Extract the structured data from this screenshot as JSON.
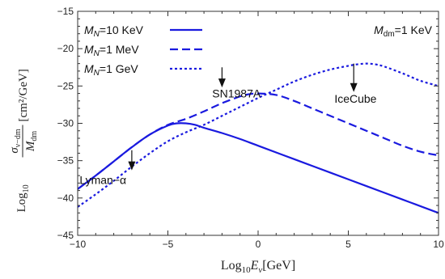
{
  "chart_data": {
    "type": "line",
    "title": "",
    "xlabel": {
      "prefix": "Log",
      "sub": "10",
      "var": "E",
      "varsub": "ν",
      "unit": "[GeV]"
    },
    "ylabel": {
      "prefix": "Log",
      "sub": "10",
      "num": "σ",
      "numsub": "ν−dm",
      "den": "M",
      "densub": "dm",
      "unit": "[cm²/GeV]"
    },
    "xlim": [
      -10,
      10
    ],
    "ylim": [
      -45,
      -15
    ],
    "xticks": [
      -10,
      -5,
      0,
      5,
      10
    ],
    "yticks": [
      -45,
      -40,
      -35,
      -30,
      -25,
      -20,
      -15
    ],
    "grid": false,
    "legend_position": "top-left",
    "color": "#1a1adf",
    "series": [
      {
        "name": "M_N=10 KeV",
        "legend": {
          "m": "M",
          "sub": "N",
          "rest": "=10 KeV"
        },
        "dash": "solid",
        "x": [
          -10,
          -9,
          -8,
          -7,
          -6,
          -5,
          -4.5,
          -4,
          -3.5,
          -3,
          -2,
          -1,
          0,
          2,
          4,
          6,
          8,
          10
        ],
        "y": [
          -38.8,
          -37.0,
          -35.1,
          -33.2,
          -31.5,
          -30.3,
          -30.0,
          -30.0,
          -30.2,
          -30.6,
          -31.3,
          -32.1,
          -33.0,
          -34.8,
          -36.6,
          -38.4,
          -40.2,
          -42.0
        ]
      },
      {
        "name": "M_N=1 MeV",
        "legend": {
          "m": "M",
          "sub": "N",
          "rest": "=1 MeV"
        },
        "dash": "dashed",
        "x": [
          -10,
          -9,
          -8,
          -7,
          -6,
          -5,
          -4,
          -3,
          -2,
          -1,
          -0.5,
          0,
          1,
          2,
          3,
          4,
          5,
          6,
          7,
          8,
          9,
          10
        ],
        "y": [
          -38.8,
          -37.0,
          -35.1,
          -33.2,
          -31.5,
          -30.2,
          -29.4,
          -28.4,
          -27.3,
          -26.4,
          -26.1,
          -26.0,
          -26.2,
          -27.0,
          -28.0,
          -29.0,
          -30.0,
          -31.0,
          -32.0,
          -33.0,
          -33.8,
          -34.3
        ]
      },
      {
        "name": "M_N=1 GeV",
        "legend": {
          "m": "M",
          "sub": "N",
          "rest": "=1 GeV"
        },
        "dash": "dotted",
        "x": [
          -10,
          -9,
          -8,
          -7,
          -6,
          -5,
          -4,
          -3,
          -2,
          -1,
          0,
          1,
          2,
          3,
          4,
          5,
          5.5,
          6,
          6.5,
          7,
          8,
          9,
          10
        ],
        "y": [
          -41.2,
          -39.5,
          -37.7,
          -35.8,
          -34.0,
          -32.4,
          -31.2,
          -30.2,
          -29.0,
          -27.8,
          -26.6,
          -25.5,
          -24.4,
          -23.5,
          -22.8,
          -22.3,
          -22.1,
          -22.0,
          -22.1,
          -22.4,
          -23.3,
          -24.3,
          -25.0
        ]
      }
    ],
    "annotations": [
      {
        "text": "SN1987A",
        "arrow_x": -2,
        "arrow_top": -22.5,
        "arrow_bottom": -25.2,
        "label_x": -1.2,
        "label_y": -26.0
      },
      {
        "text": "IceCube",
        "arrow_x": 5.3,
        "arrow_top": -22.0,
        "arrow_bottom": -25.8,
        "label_x": 5.4,
        "label_y": -26.7
      },
      {
        "text": "Lyman−α",
        "arrow_x": -7,
        "arrow_top": -33.6,
        "arrow_bottom": -36.3,
        "label_x": -8.6,
        "label_y": -37.6
      }
    ],
    "mass_label": {
      "m": "M",
      "sub": "dm",
      "rest": "=1 KeV"
    }
  }
}
